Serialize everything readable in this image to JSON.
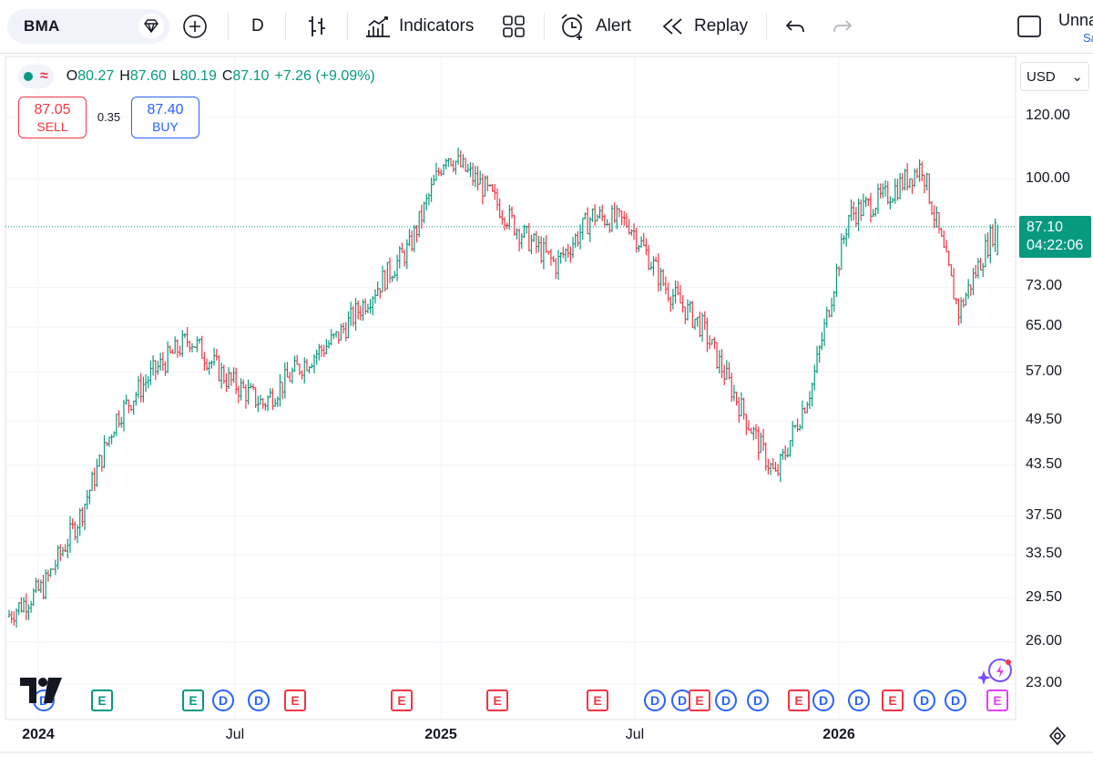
{
  "toolbar": {
    "symbol": "BMA",
    "interval": "D",
    "indicators_label": "Indicators",
    "alert_label": "Alert",
    "replay_label": "Replay",
    "layout_name": "Unna",
    "layout_sub": "Sa"
  },
  "legend": {
    "o_label": "O",
    "o_value": "80.27",
    "h_label": "H",
    "h_value": "87.60",
    "l_label": "L",
    "l_value": "80.19",
    "c_label": "C",
    "c_value": "87.10",
    "change": "+7.26 (+9.09%)"
  },
  "trade": {
    "sell_price": "87.05",
    "sell_label": "SELL",
    "spread": "0.35",
    "buy_price": "87.40",
    "buy_label": "BUY"
  },
  "currency": "USD",
  "last_price": {
    "price": "87.10",
    "countdown": "04:22:06"
  },
  "y_ticks": [
    "120.00",
    "100.00",
    "73.00",
    "65.00",
    "57.00",
    "49.50",
    "43.50",
    "37.50",
    "33.50",
    "29.50",
    "26.00",
    "23.00"
  ],
  "x_ticks": [
    "2024",
    "Jul",
    "2025",
    "Jul",
    "2026"
  ],
  "events": [
    {
      "type": "D"
    },
    {
      "type": "Eg"
    },
    {
      "type": "Eg"
    },
    {
      "type": "D"
    },
    {
      "type": "D"
    },
    {
      "type": "E"
    },
    {
      "type": "E"
    },
    {
      "type": "E"
    },
    {
      "type": "E"
    },
    {
      "type": "D"
    },
    {
      "type": "D"
    },
    {
      "type": "E"
    },
    {
      "type": "D"
    },
    {
      "type": "D"
    },
    {
      "type": "E"
    },
    {
      "type": "D"
    },
    {
      "type": "D"
    },
    {
      "type": "E"
    },
    {
      "type": "D"
    },
    {
      "type": "D"
    },
    {
      "type": "Ep"
    }
  ],
  "colors": {
    "up": "#089981",
    "down": "#f23645",
    "grid": "#f0f3fa",
    "accent": "#2962ff"
  },
  "chart_data": {
    "type": "candlestick",
    "scale": "log",
    "ylim": [
      22,
      135
    ],
    "x": [
      "2024-01",
      "2024-02",
      "2024-03",
      "2024-04",
      "2024-05",
      "2024-06",
      "2024-07",
      "2024-08",
      "2024-09",
      "2024-10",
      "2024-11",
      "2024-12",
      "2025-01",
      "2025-02",
      "2025-03",
      "2025-04",
      "2025-05",
      "2025-06",
      "2025-07",
      "2025-08",
      "2025-09",
      "2025-10",
      "2025-11",
      "2025-12",
      "2026-01",
      "2026-02",
      "2026-03",
      "2026-04"
    ],
    "close": [
      28.0,
      30.5,
      37.5,
      50.0,
      57.0,
      63.0,
      56.0,
      52.0,
      58.0,
      63.0,
      72.0,
      82.0,
      108.0,
      98.0,
      86.0,
      78.0,
      90.0,
      88.0,
      73.0,
      65.0,
      52.0,
      42.0,
      55.0,
      90.0,
      95.0,
      104.0,
      68.0,
      87.1
    ],
    "series": [
      {
        "name": "BMA",
        "values": [
          28.0,
          30.5,
          37.5,
          50.0,
          57.0,
          63.0,
          56.0,
          52.0,
          58.0,
          63.0,
          72.0,
          82.0,
          108.0,
          98.0,
          86.0,
          78.0,
          90.0,
          88.0,
          73.0,
          65.0,
          52.0,
          42.0,
          55.0,
          90.0,
          95.0,
          104.0,
          68.0,
          87.1
        ]
      }
    ],
    "last": {
      "open": 80.27,
      "high": 87.6,
      "low": 80.19,
      "close": 87.1
    }
  }
}
